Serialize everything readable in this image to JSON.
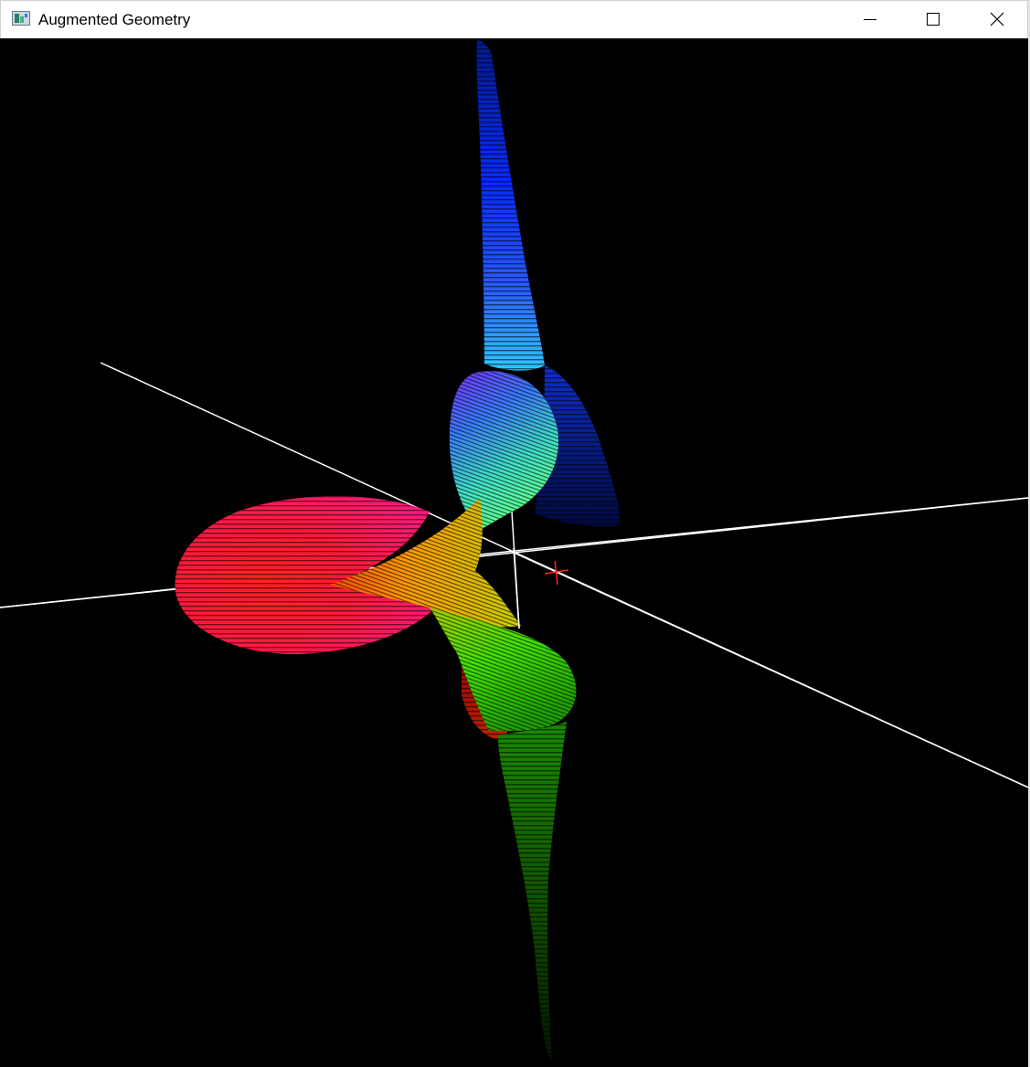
{
  "window": {
    "title": "Augmented Geometry",
    "icon": "app-window-icon"
  },
  "caption_buttons": [
    {
      "name": "minimize",
      "icon": "minimize-icon"
    },
    {
      "name": "maximize",
      "icon": "maximize-icon"
    },
    {
      "name": "close",
      "icon": "close-icon"
    }
  ],
  "scene": {
    "background_color": "#000000",
    "axis_color": "#ffffff",
    "cursor_color": "#ff2020",
    "surface_colors": {
      "red": "#ff1a1a",
      "pink": "#ff1a66",
      "orange": "#ff8000",
      "yellow": "#b3d000",
      "green": "#33e600",
      "dark_green": "#1a7a00",
      "cyan": "#40e0c0",
      "blue": "#1040ff",
      "violet": "#7a30ff"
    }
  }
}
